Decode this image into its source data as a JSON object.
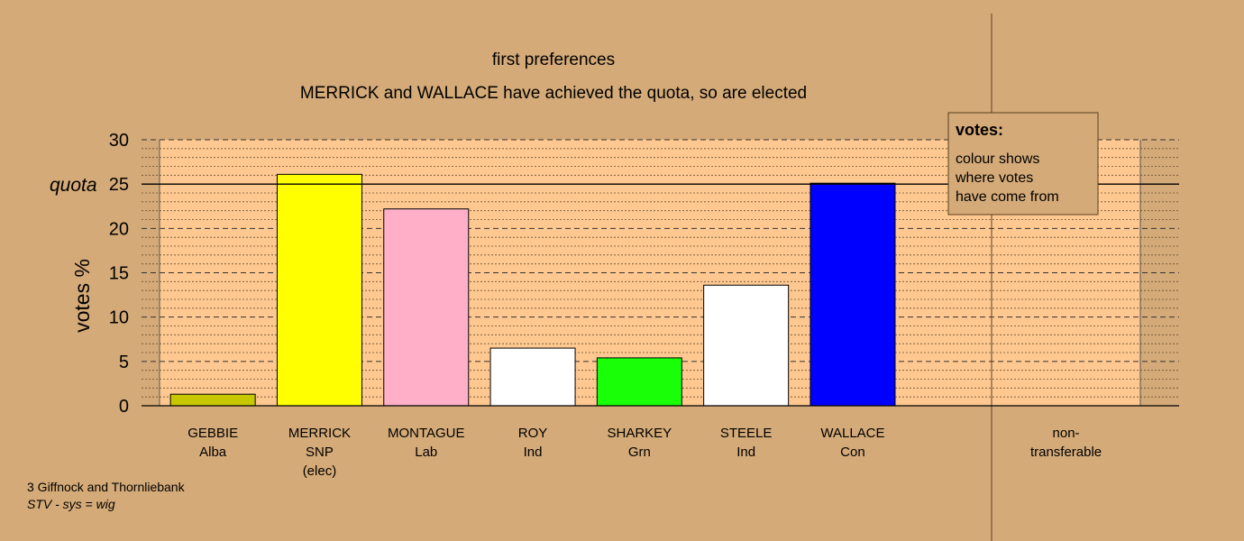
{
  "chart_data": {
    "type": "bar",
    "title": "first preferences",
    "subtitle": "MERRICK and WALLACE have achieved the quota, so are elected",
    "ylabel": "votes %",
    "ylim": [
      0,
      30
    ],
    "yticks": [
      0,
      5,
      10,
      15,
      20,
      25,
      30
    ],
    "quota": 25,
    "quota_label": "quota",
    "grid": true,
    "categories": [
      {
        "name": "GEBBIE",
        "party": "Alba",
        "note": ""
      },
      {
        "name": "MERRICK",
        "party": "SNP",
        "note": "(elec)"
      },
      {
        "name": "MONTAGUE",
        "party": "Lab",
        "note": ""
      },
      {
        "name": "ROY",
        "party": "Ind",
        "note": ""
      },
      {
        "name": "SHARKEY",
        "party": "Grn",
        "note": ""
      },
      {
        "name": "STEELE",
        "party": "Ind",
        "note": ""
      },
      {
        "name": "WALLACE",
        "party": "Con",
        "note": ""
      },
      {
        "name": "",
        "party": "",
        "note": ""
      },
      {
        "name": "non-",
        "party": "transferable",
        "note": ""
      }
    ],
    "values": [
      1.3,
      26.1,
      22.2,
      6.5,
      5.4,
      13.6,
      25.1,
      0,
      0
    ],
    "colors": [
      "#c8c800",
      "#ffff00",
      "#ffb0c8",
      "#ffffff",
      "#18ff08",
      "#ffffff",
      "#0000ff",
      "#ffffff",
      "#ffffff"
    ]
  },
  "legend": {
    "title": "votes:",
    "lines": [
      "colour shows",
      "where votes",
      "have come from"
    ]
  },
  "footer": {
    "line1": "3 Giffnock and Thornliebank",
    "line2": "STV - sys = wig"
  },
  "colors": {
    "background": "#d4aa78",
    "plot_area": "#ffc890"
  }
}
